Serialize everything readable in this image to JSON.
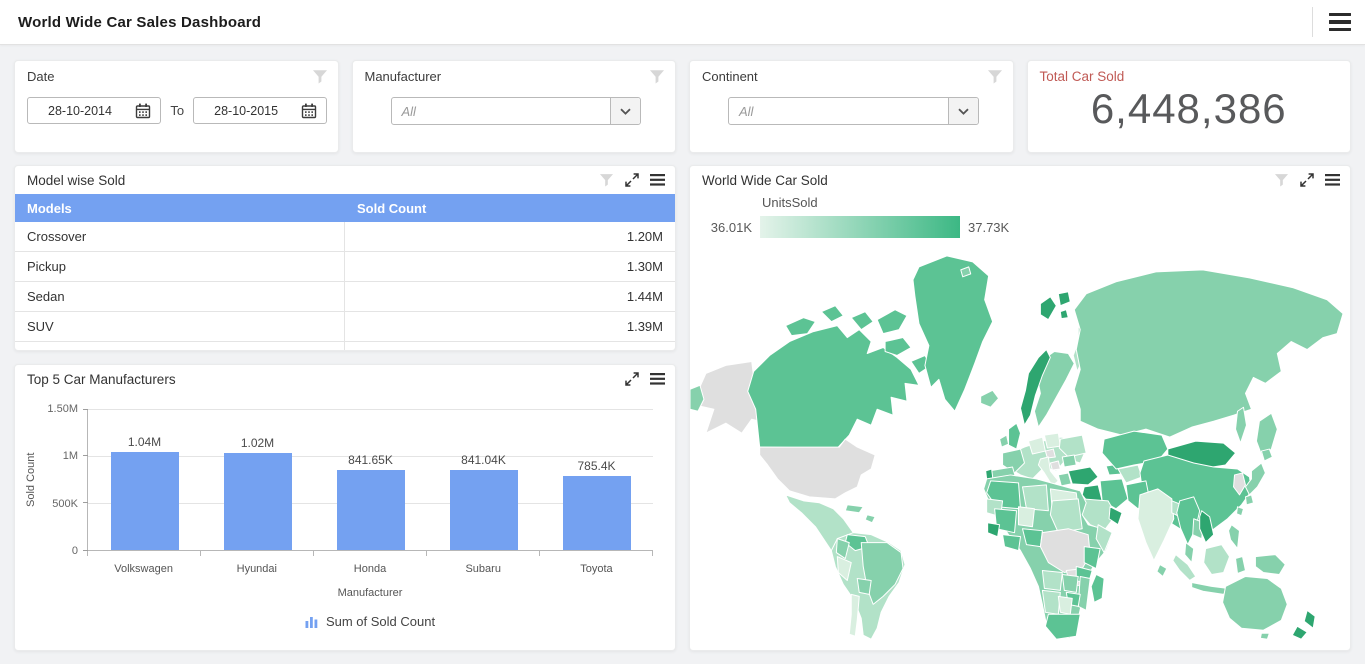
{
  "header": {
    "title": "World Wide Car Sales Dashboard"
  },
  "filters": {
    "date": {
      "label": "Date",
      "from_value": "28-10-2014",
      "separator": "To",
      "to_value": "28-10-2015"
    },
    "manufacturer": {
      "label": "Manufacturer",
      "value": "All"
    },
    "continent": {
      "label": "Continent",
      "value": "All"
    }
  },
  "kpi": {
    "label": "Total Car Sold",
    "value": "6,448,386",
    "label_color": "#c05a55",
    "value_color": "#58595b"
  },
  "model_table": {
    "title": "Model wise Sold",
    "columns": [
      "Models",
      "Sold Count"
    ],
    "header_bg": "#74a1f1",
    "rows": [
      {
        "model": "Crossover",
        "count": "1.20M"
      },
      {
        "model": "Pickup",
        "count": "1.30M"
      },
      {
        "model": "Sedan",
        "count": "1.44M"
      },
      {
        "model": "SUV",
        "count": "1.39M"
      }
    ]
  },
  "chart_data": [
    {
      "type": "bar",
      "title": "Top 5 Car Manufacturers",
      "categories": [
        "Volkswagen",
        "Hyundai",
        "Honda",
        "Subaru",
        "Toyota"
      ],
      "values": [
        1040000,
        1020000,
        841650,
        841040,
        785400
      ],
      "value_labels": [
        "1.04M",
        "1.02M",
        "841.65K",
        "841.04K",
        "785.4K"
      ],
      "xlabel": "Manufacturer",
      "ylabel": "Sold Count",
      "ylim": [
        0,
        1500000
      ],
      "yticks": [
        {
          "label": "0",
          "value": 0
        },
        {
          "label": "500K",
          "value": 500000
        },
        {
          "label": "1M",
          "value": 1000000
        },
        {
          "label": "1.50M",
          "value": 1500000
        }
      ],
      "grid": true,
      "legend": "Sum of Sold Count",
      "legend_position": "bottom",
      "bar_color": "#74a1f1"
    },
    {
      "type": "choropleth",
      "title": "World Wide Car Sold",
      "legend_label": "UnitsSold",
      "min_label": "36.01K",
      "max_label": "37.73K",
      "min_value": 36010,
      "max_value": 37730,
      "gradient_start": "#e4f3ea",
      "gradient_end": "#3cb884",
      "no_data_color": "#dfdfdf",
      "shades": [
        "#d9efe0",
        "#b2e2c8",
        "#86d1ac",
        "#5cc394",
        "#2ea670"
      ]
    }
  ]
}
